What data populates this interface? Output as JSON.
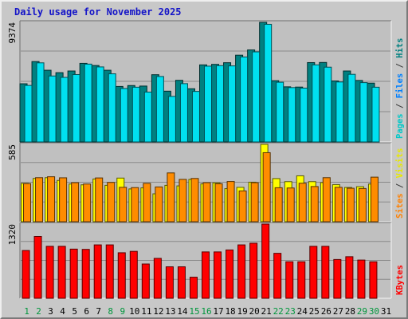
{
  "chart_data": {
    "type": "bar",
    "title": "Daily usage for November 2025",
    "categories": [
      "1",
      "2",
      "3",
      "4",
      "5",
      "6",
      "7",
      "8",
      "9",
      "10",
      "11",
      "12",
      "13",
      "14",
      "15",
      "16",
      "17",
      "18",
      "19",
      "20",
      "21",
      "22",
      "23",
      "24",
      "25",
      "26",
      "27",
      "28",
      "29",
      "30",
      "31"
    ],
    "weekend_days": [
      "1",
      "2",
      "8",
      "9",
      "15",
      "16",
      "22",
      "23",
      "29",
      "30"
    ],
    "panels": [
      {
        "max_label": "9374",
        "axis_label_parts": [
          {
            "text": "Pages",
            "color": "#00c8c8"
          },
          {
            "text": " / ",
            "color": "#3c3c3c"
          },
          {
            "text": "Files",
            "color": "#0080ff"
          },
          {
            "text": " / ",
            "color": "#3c3c3c"
          },
          {
            "text": "Hits",
            "color": "#008080"
          }
        ],
        "ylim": [
          0,
          9374
        ],
        "series": [
          {
            "name": "Hits",
            "color": "#008080",
            "values": [
              4560,
              6300,
              5620,
              5430,
              5560,
              6160,
              5990,
              5620,
              4350,
              4420,
              4380,
              5270,
              3980,
              4830,
              4170,
              6040,
              6080,
              6210,
              6800,
              7210,
              9374,
              4800,
              4320,
              4300,
              6220,
              6230,
              4780,
              5560,
              4820,
              4610,
              null
            ]
          },
          {
            "name": "Files",
            "color": "#0080ff",
            "values": [
              null,
              null,
              null,
              null,
              null,
              null,
              null,
              null,
              null,
              null,
              null,
              null,
              null,
              null,
              null,
              null,
              null,
              null,
              null,
              null,
              null,
              null,
              null,
              null,
              null,
              null,
              null,
              null,
              null,
              null,
              null
            ]
          },
          {
            "name": "Pages",
            "color": "#00e0f0",
            "values": [
              4430,
              6200,
              5170,
              5060,
              5280,
              6100,
              5880,
              5340,
              4190,
              4290,
              3910,
              5130,
              3570,
              4570,
              3960,
              5940,
              5980,
              5960,
              6660,
              7060,
              9220,
              4680,
              4260,
              4220,
              6040,
              5860,
              4700,
              5300,
              4650,
              4290,
              null
            ]
          }
        ]
      },
      {
        "max_label": "585",
        "axis_label_parts": [
          {
            "text": "Sites",
            "color": "#ff8000"
          },
          {
            "text": " / ",
            "color": "#3c3c3c"
          },
          {
            "text": "Visits",
            "color": "#e8e800"
          }
        ],
        "ylim": [
          0,
          585
        ],
        "series": [
          {
            "name": "Visits",
            "color": "#ffff00",
            "values": [
              290,
              327,
              333,
              312,
              285,
              279,
              323,
              275,
              330,
              248,
              256,
              211,
              275,
              271,
              320,
              286,
              294,
              250,
              260,
              299,
              585,
              326,
              303,
              347,
              303,
              296,
              280,
              259,
              265,
              285,
              null
            ]
          },
          {
            "name": "Sites",
            "color": "#ff8c00",
            "values": [
              288,
              333,
              340,
              332,
              295,
              285,
              331,
              297,
              260,
              258,
              290,
              263,
              369,
              320,
              327,
              295,
              287,
              304,
              233,
              295,
              522,
              257,
              255,
              291,
              266,
              333,
              260,
              253,
              251,
              337,
              null
            ]
          }
        ]
      },
      {
        "max_label": "1320",
        "axis_label_parts": [
          {
            "text": "KBytes",
            "color": "#ff0000"
          }
        ],
        "ylim": [
          0,
          1320
        ],
        "series": [
          {
            "name": "KBytes",
            "color": "#ff0000",
            "values": [
              850,
              1100,
              925,
              925,
              875,
              870,
              950,
              950,
              810,
              835,
              610,
              710,
              560,
              560,
              375,
              825,
              825,
              860,
              950,
              980,
              1320,
              800,
              650,
              650,
              925,
              925,
              690,
              740,
              680,
              650,
              null
            ]
          }
        ]
      }
    ]
  }
}
